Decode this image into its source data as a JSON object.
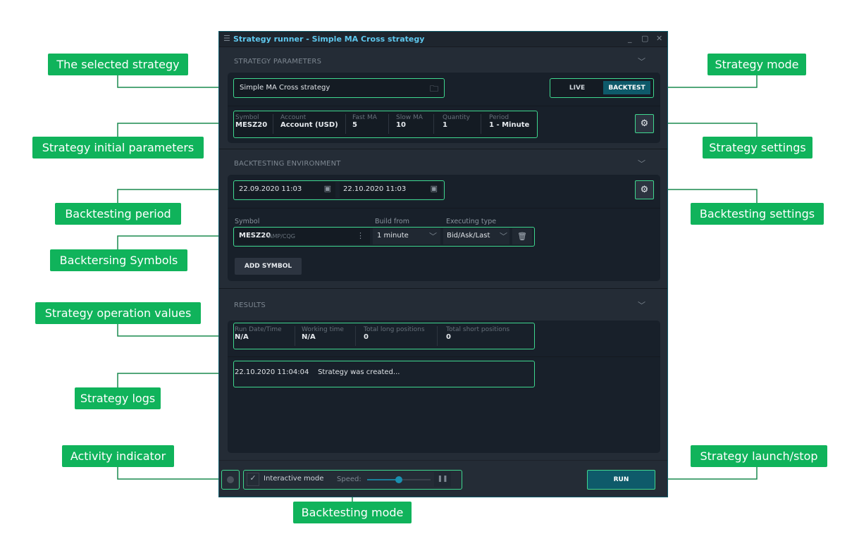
{
  "window": {
    "title": "Strategy runner - Simple MA Cross strategy"
  },
  "strategy_parameters": {
    "header": "STRATEGY PARAMETERS",
    "selected_strategy": "Simple MA Cross strategy",
    "modes": [
      "LIVE",
      "BACKTEST"
    ],
    "active_mode": "BACKTEST",
    "params": [
      {
        "label": "Symbol",
        "value": "MESZ20"
      },
      {
        "label": "Account",
        "value": "Account (USD)"
      },
      {
        "label": "Fast MA",
        "value": "5"
      },
      {
        "label": "Slow MA",
        "value": "10"
      },
      {
        "label": "Quantity",
        "value": "1"
      },
      {
        "label": "Period",
        "value": "1 - Minute"
      }
    ]
  },
  "backtesting_environment": {
    "header": "BACKTESTING ENVIRONMENT",
    "from": "22.09.2020 11:03",
    "to": "22.10.2020 11:03",
    "symbol_label": "Symbol",
    "build_from_label": "Build from",
    "executing_type_label": "Executing type",
    "symbol": "MESZ20",
    "symbol_source": "AMP/CQG",
    "build_from": "1 minute",
    "executing_type": "Bid/Ask/Last",
    "add_symbol": "ADD SYMBOL"
  },
  "results": {
    "header": "RESULTS",
    "values": [
      {
        "label": "Run Date/Time",
        "value": "N/A"
      },
      {
        "label": "Working time",
        "value": "N/A"
      },
      {
        "label": "Total long positions",
        "value": "0"
      },
      {
        "label": "Total short positions",
        "value": "0"
      }
    ],
    "logs": [
      {
        "time": "22.10.2020 11:04:04",
        "message": "Strategy was created..."
      }
    ]
  },
  "footer": {
    "interactive_mode": "Interactive mode",
    "interactive_checked": true,
    "speed_label": "Speed:",
    "speed": 0.5,
    "run": "RUN"
  },
  "callouts": {
    "selected_strategy": "The selected strategy",
    "initial_parameters": "Strategy initial parameters",
    "backtesting_period": "Backtesting period",
    "backtesting_symbols": "Backtersing Symbols",
    "operation_values": "Strategy operation values",
    "logs": "Strategy logs",
    "activity_indicator": "Activity indicator",
    "backtesting_mode": "Backtesting mode",
    "strategy_mode": "Strategy mode",
    "strategy_settings": "Strategy settings",
    "backtesting_settings": "Backtesting settings",
    "launch_stop": "Strategy launch/stop"
  },
  "colors": {
    "callout": "#10b35b",
    "highlight": "#3fd88f",
    "accent": "#0e5a6a",
    "title": "#5fc8ee"
  }
}
